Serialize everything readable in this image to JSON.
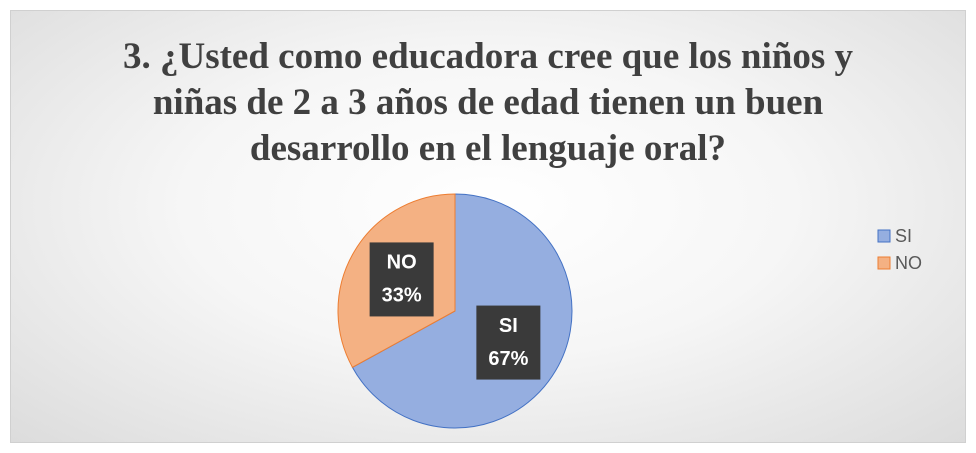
{
  "chart_data": {
    "type": "pie",
    "title": "3. ¿Usted como educadora cree que los niños y niñas de 2 a 3 años de edad tienen un buen desarrollo en el lenguaje oral?",
    "categories": [
      "SI",
      "NO"
    ],
    "values": [
      67,
      33
    ],
    "value_labels": [
      "67%",
      "33%"
    ],
    "colors": [
      "#95aee0",
      "#f4b183"
    ],
    "edge_colors": [
      "#4472c4",
      "#ed7d31"
    ],
    "legend": "right"
  }
}
